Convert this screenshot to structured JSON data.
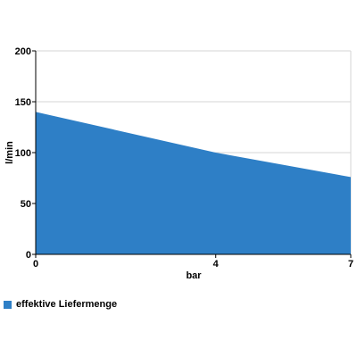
{
  "chart_data": {
    "type": "area",
    "x": [
      0,
      4,
      7
    ],
    "xticks": [
      0,
      4,
      7
    ],
    "xlim": [
      0,
      7
    ],
    "ylim": [
      0,
      200
    ],
    "yticks": [
      0,
      50,
      100,
      150,
      200
    ],
    "xlabel": "bar",
    "ylabel": "l/min",
    "grid": true,
    "legend_position": "bottom-left",
    "series": [
      {
        "name": "effektive Liefermenge",
        "values": [
          140,
          100,
          76
        ],
        "color": "#2e7fc6"
      }
    ]
  }
}
